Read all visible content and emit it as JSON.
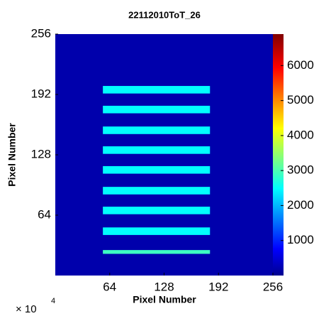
{
  "chart_data": {
    "type": "heatmap",
    "title": "22112010ToT_26",
    "xlabel": "Pixel Number",
    "ylabel": "Pixel Number",
    "xlim": [
      0,
      256
    ],
    "ylim": [
      0,
      256
    ],
    "xticks": [
      64,
      128,
      192,
      256
    ],
    "yticks": [
      64,
      128,
      192,
      256
    ],
    "background_value": 300,
    "regions": [
      {
        "x0": 56,
        "x1": 182,
        "y0": 193,
        "y1": 201,
        "value": 2600
      },
      {
        "x0": 56,
        "x1": 182,
        "y0": 172,
        "y1": 180,
        "value": 2600
      },
      {
        "x0": 56,
        "x1": 182,
        "y0": 150,
        "y1": 158,
        "value": 2600
      },
      {
        "x0": 56,
        "x1": 182,
        "y0": 129,
        "y1": 137,
        "value": 2600
      },
      {
        "x0": 56,
        "x1": 182,
        "y0": 108,
        "y1": 116,
        "value": 2600
      },
      {
        "x0": 56,
        "x1": 182,
        "y0": 86,
        "y1": 94,
        "value": 2600
      },
      {
        "x0": 56,
        "x1": 182,
        "y0": 65,
        "y1": 73,
        "value": 2600
      },
      {
        "x0": 56,
        "x1": 182,
        "y0": 43,
        "y1": 51,
        "value": 2600
      },
      {
        "x0": 56,
        "x1": 182,
        "y0": 23,
        "y1": 27,
        "value": 3000
      }
    ],
    "colorbar": {
      "clim": [
        0,
        6900
      ],
      "ticks": [
        1000,
        2000,
        3000,
        4000,
        5000,
        6000
      ],
      "colormap": "jet"
    },
    "annotation": {
      "text": "× 10",
      "exponent": "4"
    }
  }
}
